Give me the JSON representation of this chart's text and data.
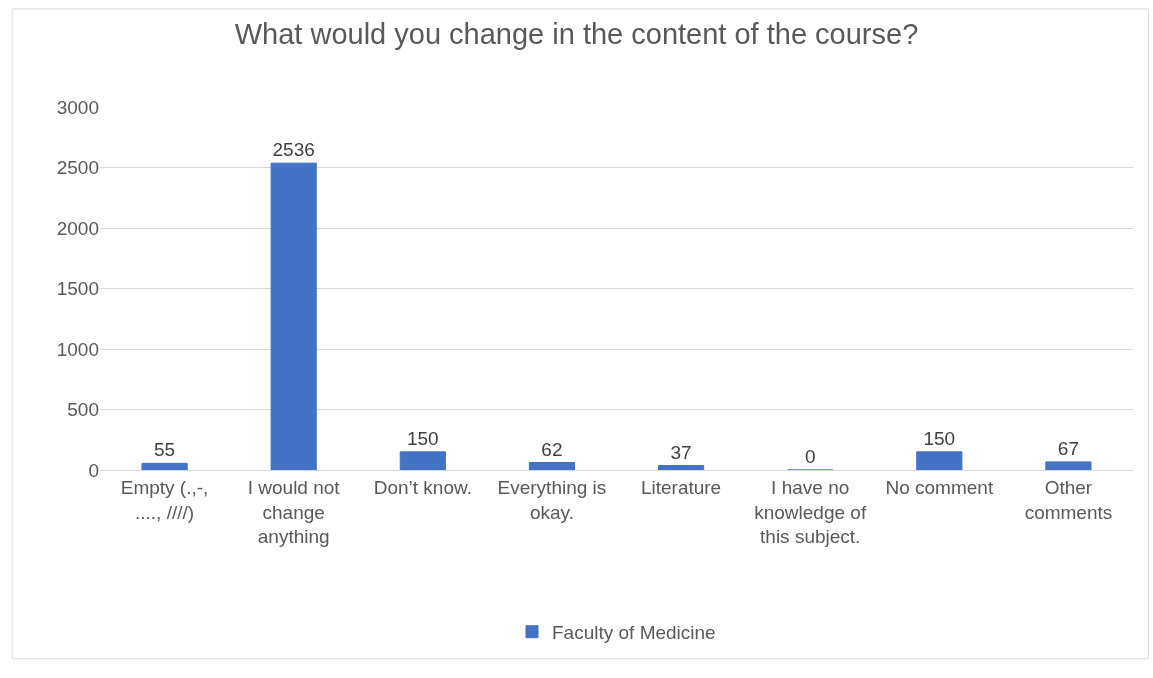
{
  "chart_data": {
    "type": "bar",
    "title": "What would you change in the content of the course?",
    "categories": [
      "Empty (.,-, ...., ////)",
      "I would not change anything",
      "Don’t know.",
      "Everything is okay.",
      "Literature",
      "I have no knowledge of this subject.",
      "No comment",
      "Other comments"
    ],
    "series": [
      {
        "name": "Faculty of Medicine",
        "color": "#4472c4",
        "values": [
          55,
          2536,
          150,
          62,
          37,
          0,
          150,
          67
        ]
      }
    ],
    "ylim": [
      0,
      3000
    ],
    "yticks": [
      0,
      500,
      1000,
      1500,
      2000,
      2500,
      3000
    ],
    "grid": "y",
    "legend": "bottom",
    "data_labels": true
  }
}
